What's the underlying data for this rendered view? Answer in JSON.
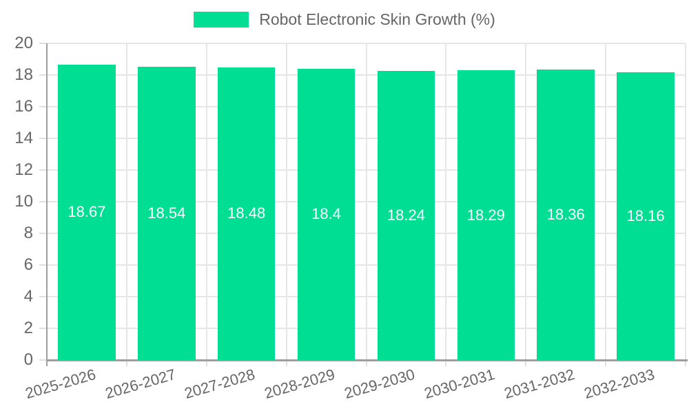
{
  "chart_data": {
    "type": "bar",
    "title": "Robot Electronic Skin Growth (%)",
    "legend_position": "top",
    "categories": [
      "2025-2026",
      "2026-2027",
      "2027-2028",
      "2028-2029",
      "2029-2030",
      "2030-2031",
      "2031-2032",
      "2032-2033"
    ],
    "series": [
      {
        "name": "Robot Electronic Skin Growth (%)",
        "values": [
          18.67,
          18.54,
          18.48,
          18.4,
          18.24,
          18.29,
          18.36,
          18.16
        ],
        "data_labels": [
          "18.67",
          "18.54",
          "18.48",
          "18.4",
          "18.24",
          "18.29",
          "18.36",
          "18.16"
        ]
      }
    ],
    "xlabel": "",
    "ylabel": "",
    "ylim": [
      0,
      20
    ],
    "yticks": [
      0,
      2,
      4,
      6,
      8,
      10,
      12,
      14,
      16,
      18,
      20
    ],
    "grid": true,
    "colors": {
      "bar": "#00de94",
      "grid": "#e6e6e6",
      "axis": "#9e9e9e",
      "tick_text": "#666666",
      "legend_text": "#666666",
      "value_label": "#ffffff",
      "background": "#ffffff"
    }
  }
}
